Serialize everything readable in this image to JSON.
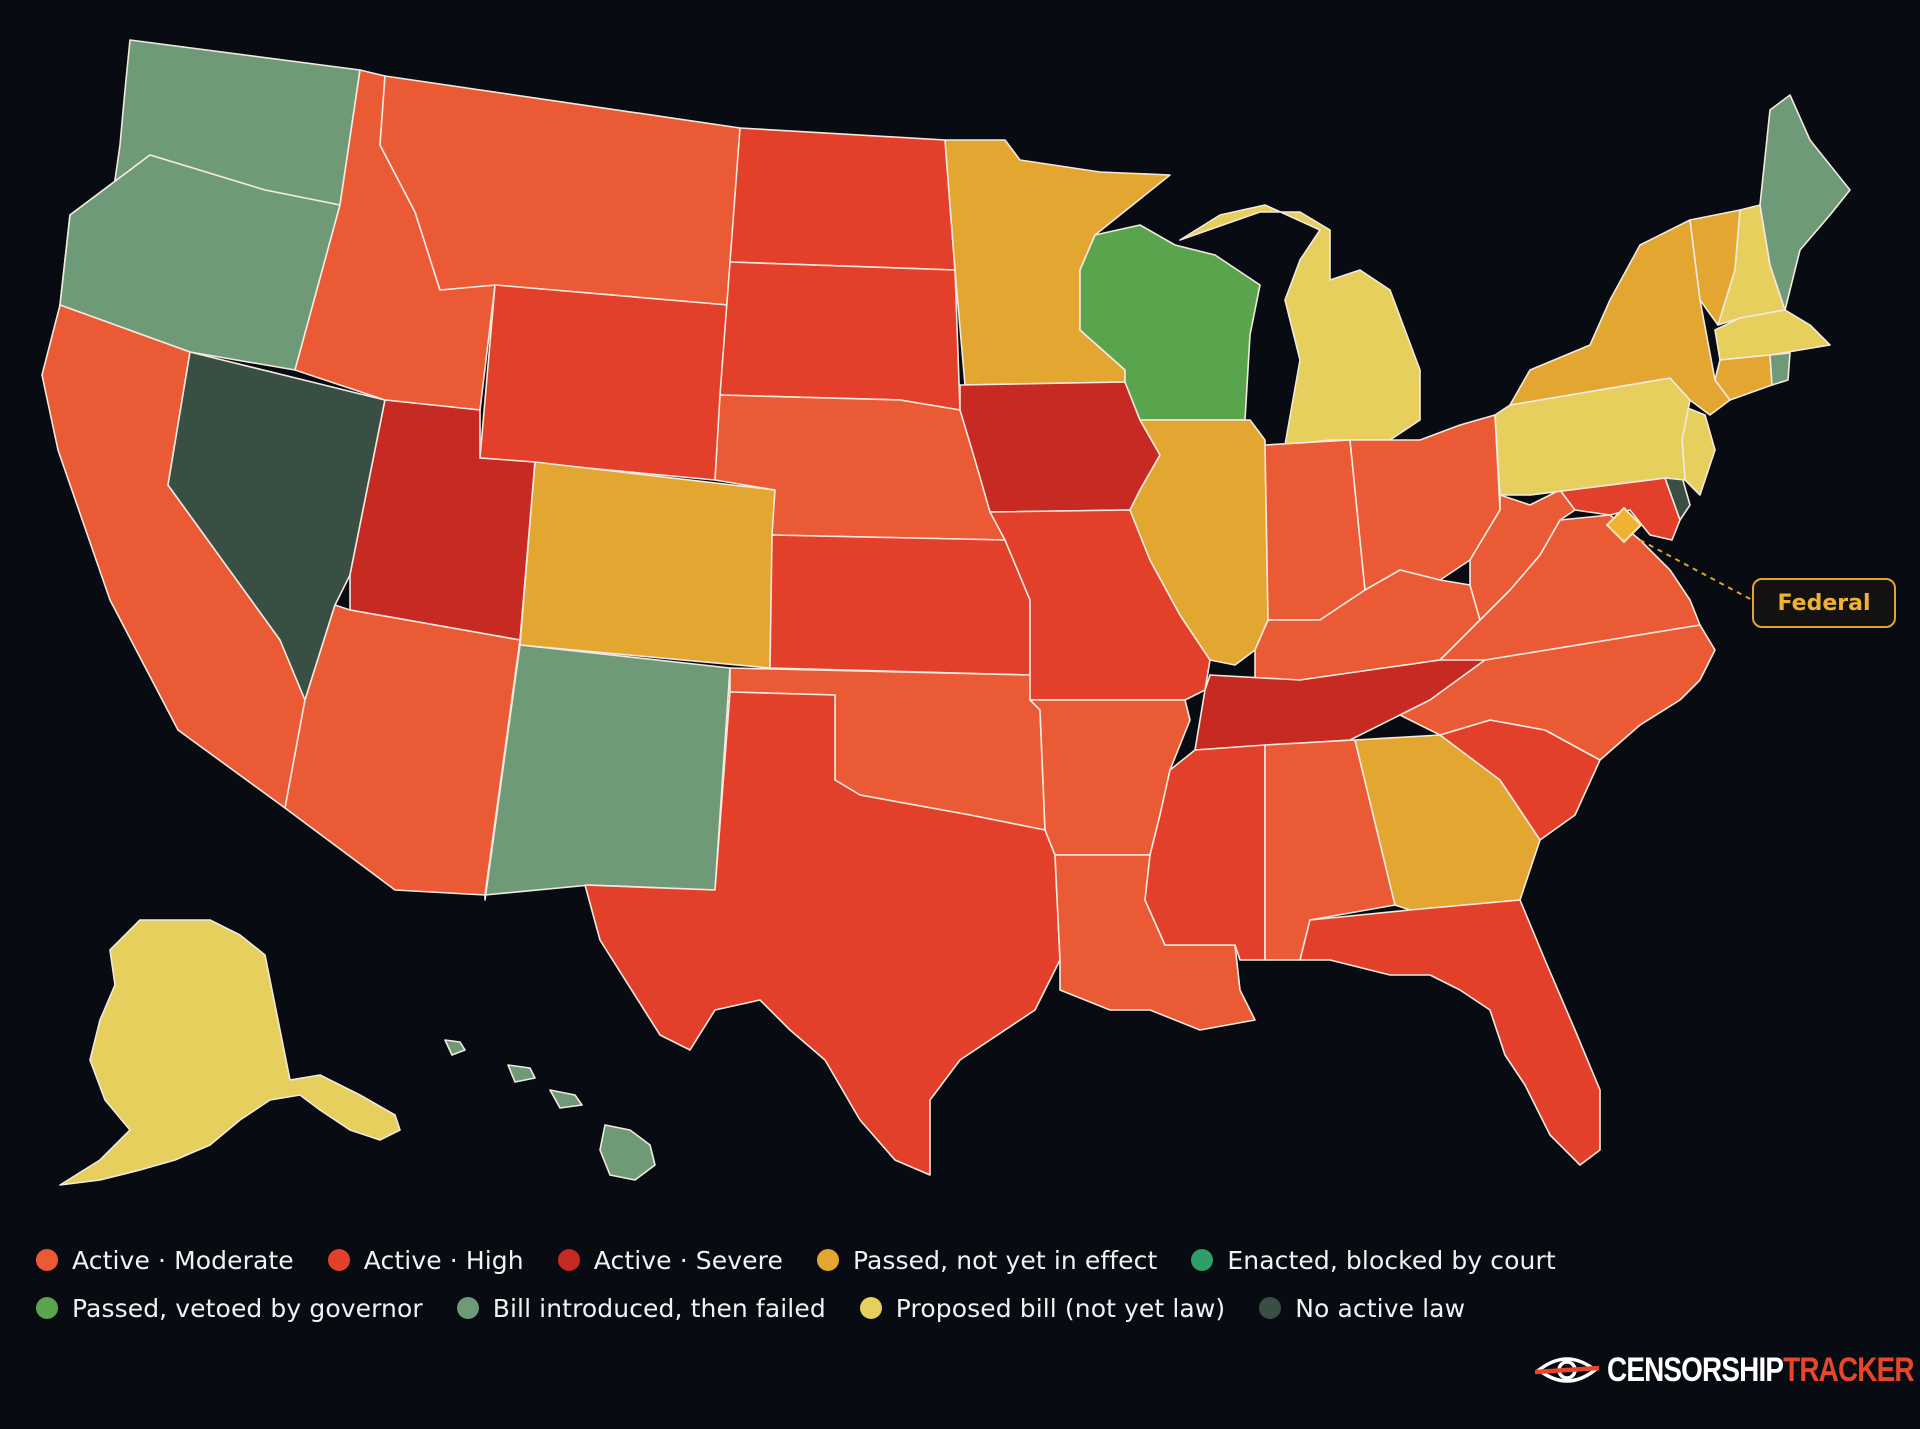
{
  "map": {
    "callout": {
      "label": "Federal"
    },
    "states": [
      {
        "code": "WA",
        "status": "failed"
      },
      {
        "code": "OR",
        "status": "failed"
      },
      {
        "code": "CA",
        "status": "moderate"
      },
      {
        "code": "NV",
        "status": "none"
      },
      {
        "code": "ID",
        "status": "moderate"
      },
      {
        "code": "MT",
        "status": "moderate"
      },
      {
        "code": "WY",
        "status": "high"
      },
      {
        "code": "UT",
        "status": "severe"
      },
      {
        "code": "AZ",
        "status": "moderate"
      },
      {
        "code": "CO",
        "status": "passed"
      },
      {
        "code": "NM",
        "status": "failed"
      },
      {
        "code": "ND",
        "status": "high"
      },
      {
        "code": "SD",
        "status": "high"
      },
      {
        "code": "NE",
        "status": "moderate"
      },
      {
        "code": "KS",
        "status": "high"
      },
      {
        "code": "OK",
        "status": "moderate"
      },
      {
        "code": "TX",
        "status": "high"
      },
      {
        "code": "MN",
        "status": "passed"
      },
      {
        "code": "IA",
        "status": "severe"
      },
      {
        "code": "MO",
        "status": "high"
      },
      {
        "code": "AR",
        "status": "moderate"
      },
      {
        "code": "LA",
        "status": "moderate"
      },
      {
        "code": "WI",
        "status": "vetoed"
      },
      {
        "code": "IL",
        "status": "passed"
      },
      {
        "code": "MI",
        "status": "proposed"
      },
      {
        "code": "IN",
        "status": "moderate"
      },
      {
        "code": "OH",
        "status": "moderate"
      },
      {
        "code": "KY",
        "status": "moderate"
      },
      {
        "code": "TN",
        "status": "severe"
      },
      {
        "code": "MS",
        "status": "high"
      },
      {
        "code": "AL",
        "status": "moderate"
      },
      {
        "code": "GA",
        "status": "passed"
      },
      {
        "code": "FL",
        "status": "high"
      },
      {
        "code": "SC",
        "status": "high"
      },
      {
        "code": "NC",
        "status": "moderate"
      },
      {
        "code": "VA",
        "status": "moderate"
      },
      {
        "code": "WV",
        "status": "moderate"
      },
      {
        "code": "MD",
        "status": "high"
      },
      {
        "code": "DE",
        "status": "none"
      },
      {
        "code": "NJ",
        "status": "proposed"
      },
      {
        "code": "PA",
        "status": "proposed"
      },
      {
        "code": "NY",
        "status": "passed"
      },
      {
        "code": "VT",
        "status": "passed"
      },
      {
        "code": "NH",
        "status": "proposed"
      },
      {
        "code": "ME",
        "status": "failed"
      },
      {
        "code": "MA",
        "status": "proposed"
      },
      {
        "code": "CT",
        "status": "passed"
      },
      {
        "code": "RI",
        "status": "failed"
      },
      {
        "code": "AK",
        "status": "proposed"
      },
      {
        "code": "HI",
        "status": "failed"
      }
    ]
  },
  "legend": [
    {
      "key": "moderate",
      "label": "Active · Moderate",
      "color": "#ea5a34"
    },
    {
      "key": "high",
      "label": "Active · High",
      "color": "#e2402a"
    },
    {
      "key": "severe",
      "label": "Active · Severe",
      "color": "#c72a22"
    },
    {
      "key": "passed",
      "label": "Passed, not yet in effect",
      "color": "#e3a630"
    },
    {
      "key": "blocked",
      "label": "Enacted, blocked by court",
      "color": "#2f9e6a"
    },
    {
      "key": "vetoed",
      "label": "Passed, vetoed by governor",
      "color": "#5aa44e"
    },
    {
      "key": "failed",
      "label": "Bill introduced, then failed",
      "color": "#6f9a78"
    },
    {
      "key": "proposed",
      "label": "Proposed bill (not yet law)",
      "color": "#e6cf5c"
    },
    {
      "key": "none",
      "label": "No active law",
      "color": "#3a4f44"
    }
  ],
  "brand": {
    "word1": "CENSORSHIP",
    "word2": "TRACKER"
  },
  "colors": {
    "background": "#080b12",
    "federal": "#f0b232"
  }
}
